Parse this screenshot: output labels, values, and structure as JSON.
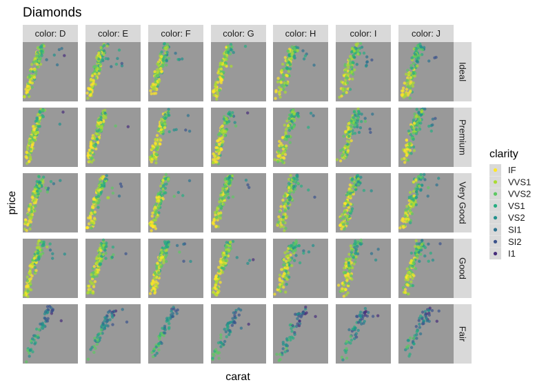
{
  "chart_data": {
    "type": "scatter",
    "title": "Diamonds",
    "xlabel": "carat",
    "ylabel": "price",
    "facet_columns": {
      "variable": "color",
      "strip_labels": [
        "color: D",
        "color: E",
        "color: F",
        "color: G",
        "color: H",
        "color: I",
        "color: J"
      ]
    },
    "facet_rows": {
      "variable": "cut",
      "strip_labels": [
        "Ideal",
        "Premium",
        "Very Good",
        "Good",
        "Fair"
      ]
    },
    "legend": {
      "title": "clarity",
      "placement": "right",
      "entries": [
        "IF",
        "VVS1",
        "VVS2",
        "VS1",
        "VS2",
        "SI1",
        "SI2",
        "I1"
      ],
      "colors": [
        "#FDE725",
        "#AADC32",
        "#5DC863",
        "#27AD81",
        "#21908C",
        "#2C728E",
        "#3B528B",
        "#472D7B"
      ]
    },
    "panel_background": "#999999",
    "grid": false,
    "axis_ticks_shown": false,
    "point_alpha": 0.7
  }
}
